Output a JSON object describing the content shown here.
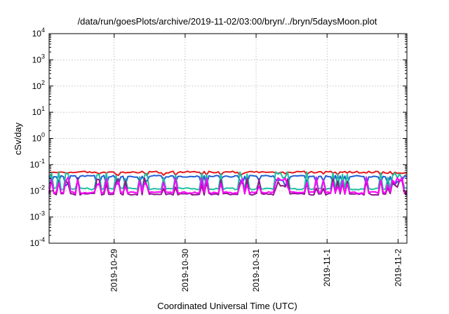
{
  "chart_data": {
    "type": "line",
    "title": "/data/run/goesPlots/archive/2019-11-02/03:00/bryn/../bryn/5daysMoon.plot",
    "xlabel": "Coordinated Universal Time (UTC)",
    "ylabel": "cSv/day",
    "yscale": "log",
    "ylim": [
      0.0001,
      10000
    ],
    "xlim": [
      "2019-10-28 02:00",
      "2019-11-02 03:00"
    ],
    "grid": true,
    "y_ticks": [
      {
        "value": 0.0001,
        "base": "10",
        "exp": "-4"
      },
      {
        "value": 0.001,
        "base": "10",
        "exp": "-3"
      },
      {
        "value": 0.01,
        "base": "10",
        "exp": "-2"
      },
      {
        "value": 0.1,
        "base": "10",
        "exp": "-1"
      },
      {
        "value": 1,
        "base": "10",
        "exp": "0"
      },
      {
        "value": 10,
        "base": "10",
        "exp": "1"
      },
      {
        "value": 100,
        "base": "10",
        "exp": "2"
      },
      {
        "value": 1000,
        "base": "10",
        "exp": "3"
      },
      {
        "value": 10000,
        "base": "10",
        "exp": "4"
      }
    ],
    "x_ticks": [
      {
        "value": "2019-10-29 00:00",
        "label": "2019-10-29"
      },
      {
        "value": "2019-10-30 00:00",
        "label": "2019-10-30"
      },
      {
        "value": "2019-10-31 00:00",
        "label": "2019-10-31"
      },
      {
        "value": "2019-11-01 00:00",
        "label": "2019-11-1"
      },
      {
        "value": "2019-11-02 00:00",
        "label": "2019-11-2"
      }
    ],
    "series": [
      {
        "color": "#e41a1c",
        "baseline": 0.052,
        "spike_low": 0.038,
        "sample_hours": 2
      },
      {
        "color": "#1f5fd6",
        "baseline": 0.036,
        "spike_low": 0.015,
        "sample_hours": 2
      },
      {
        "color": "#1fbfa0",
        "baseline": 0.012,
        "spike_low": 0.008,
        "sample_hours": 2
      },
      {
        "color": "#8b1a8b",
        "baseline": 0.0075,
        "spike_low": 0.006,
        "sample_hours": 2
      },
      {
        "color": "#ff00ff",
        "baseline": 0.0085,
        "spike_low": 0.006,
        "sample_hours": 2
      }
    ]
  }
}
